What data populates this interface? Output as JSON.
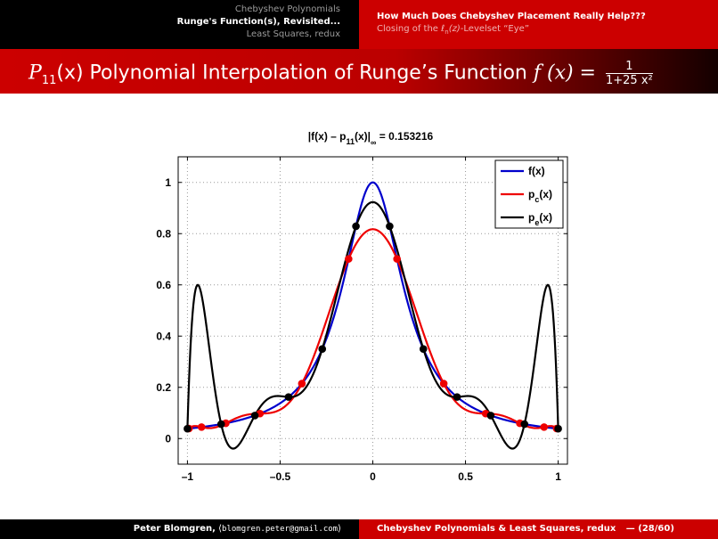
{
  "header": {
    "nav_left": [
      "Chebyshev Polynomials",
      "Runge's Function(s), Revisited...",
      "Least Squares, redux"
    ],
    "nav_left_current": 1,
    "nav_right_current": "How Much Does Chebyshev Placement Really Help???",
    "nav_right_sub_prefix": "Closing of the ",
    "nav_right_sub_math": "ℓ",
    "nav_right_sub_math_sub": "n",
    "nav_right_sub_math_rest": "(z)",
    "nav_right_sub_suffix": "-Levelset “Eye”"
  },
  "title": {
    "math_prefix": "P",
    "math_prefix_sub": "11",
    "math_prefix_arg": "(x)",
    "text": " Polynomial Interpolation of Runge’s Function ",
    "math_fx": "f (x) =",
    "frac_num": "1",
    "frac_den": "1+25 x²"
  },
  "chart_data": {
    "type": "line",
    "title_main": "|f(x) – p",
    "title_sub": "11",
    "title_mid": "(x)|",
    "title_inf": "∞",
    "title_val": " = 0.153216",
    "xlim": [
      -1.05,
      1.05
    ],
    "ylim": [
      -0.1,
      1.1
    ],
    "xticks": [
      -1,
      -0.5,
      0,
      0.5,
      1
    ],
    "xtick_labels": [
      "–1",
      "–0.5",
      "0",
      "0.5",
      "1"
    ],
    "yticks": [
      0,
      0.2,
      0.4,
      0.6,
      0.8,
      1
    ],
    "ytick_labels": [
      "0",
      "0.2",
      "0.4",
      "0.6",
      "0.8",
      "1"
    ],
    "grid": true,
    "legend_position": "top-right",
    "legend": [
      {
        "label": "f(x)",
        "sub": "",
        "color": "#0000cc"
      },
      {
        "label": "p",
        "sub": "c",
        "label_end": "(x)",
        "color": "#ee0000"
      },
      {
        "label": "p",
        "sub": "e",
        "label_end": "(x)",
        "color": "#000000"
      }
    ],
    "series": [
      {
        "id": "f",
        "color": "#0000cc",
        "func": "runge"
      },
      {
        "id": "pc",
        "color": "#ee0000",
        "nodes": "chebyshev",
        "n": 12
      },
      {
        "id": "pe",
        "color": "#000000",
        "nodes": "equispaced",
        "n": 12
      }
    ]
  },
  "footer": {
    "author": "Peter Blomgren,",
    "email_open": " ⟨",
    "email": "blomgren.peter@gmail.com",
    "email_close": "⟩",
    "right_text": "Chebyshev Polynomials & Least Squares, redux",
    "page": "— (28/60)"
  }
}
